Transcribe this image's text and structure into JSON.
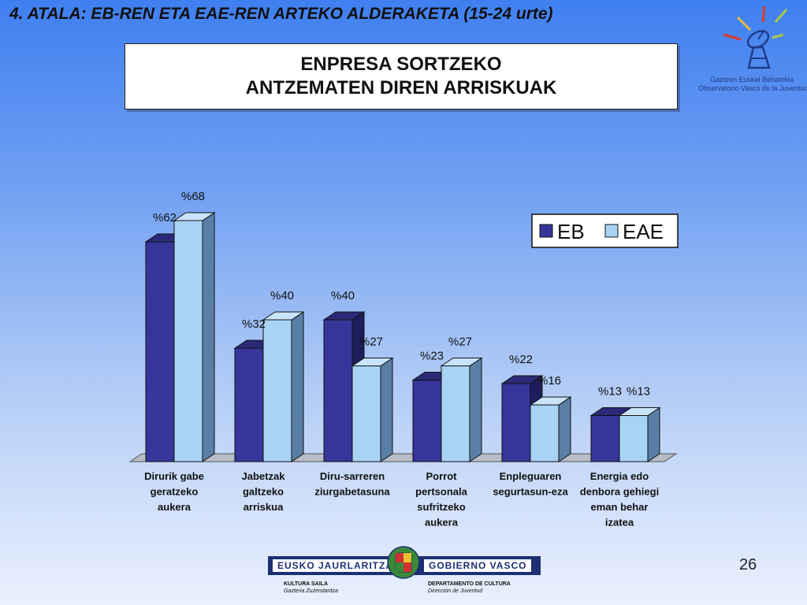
{
  "slide": {
    "heading": "4. ATALA: EB-REN ETA EAE-REN  ARTEKO ALDERAKETA (15-24 urte)",
    "title_line1": "ENPRESA SORTZEKO",
    "title_line2": "ANTZEMATEN DIREN ARRISKUAK",
    "page_number": "26"
  },
  "logo": {
    "line1": "Gazteen Euskal Behatokia",
    "line2": "Observatorio Vasco de la Juventud"
  },
  "footer": {
    "left_name": "EUSKO JAURLARITZA",
    "right_name": "GOBIERNO VASCO",
    "left_dept": "KULTURA SAILA",
    "left_sub": "Gazteria Zuzendaritza",
    "right_dept": "DEPARTAMENTO DE CULTURA",
    "right_sub": "Dirección de Juventud"
  },
  "colors": {
    "eb": "#35359a",
    "eae": "#a9d3f5",
    "brand": "#1c2f72"
  },
  "chart_data": {
    "type": "bar",
    "three_d": true,
    "categories": [
      [
        "Dirurik gabe",
        "geratzeko",
        "aukera"
      ],
      [
        "Jabetzak",
        "galtzeko",
        "arriskua"
      ],
      [
        "Diru-sarreren",
        "ziurgabetasuna"
      ],
      [
        "Porrot",
        "pertsonala",
        "sufritzeko",
        "aukera"
      ],
      [
        "Enpleguaren",
        "segurtasun-eza"
      ],
      [
        "Energia edo",
        "denbora gehiegi",
        "eman behar",
        "izatea"
      ]
    ],
    "series": [
      {
        "name": "EB",
        "values": [
          62,
          32,
          40,
          23,
          22,
          13
        ],
        "labels": [
          "%62",
          "%32",
          "%40",
          "%23",
          "%22",
          "%13"
        ]
      },
      {
        "name": "EAE",
        "values": [
          68,
          40,
          27,
          27,
          16,
          13
        ],
        "labels": [
          "%68",
          "%40",
          "%27",
          "%27",
          "%16",
          "%13"
        ]
      }
    ],
    "ylim": [
      0,
      70
    ],
    "grid": false,
    "legend_position": "top-right"
  }
}
